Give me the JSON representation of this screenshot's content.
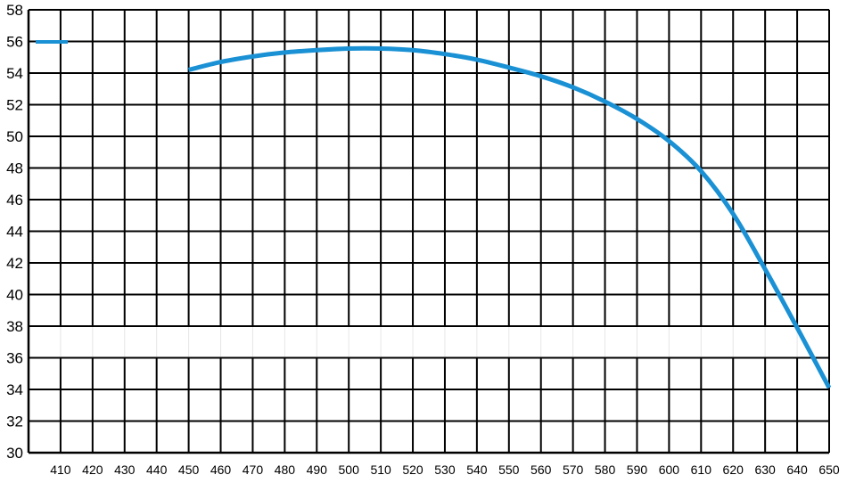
{
  "chart_data": {
    "type": "line",
    "title": "",
    "xlabel": "",
    "ylabel": "",
    "grid": true,
    "legend_placement": "top-left",
    "xlim": [
      400,
      650
    ],
    "ylim": [
      30,
      58
    ],
    "x_ticks": [
      410,
      420,
      430,
      440,
      450,
      460,
      470,
      480,
      490,
      500,
      510,
      520,
      530,
      540,
      550,
      560,
      570,
      580,
      590,
      600,
      610,
      620,
      630,
      640,
      650
    ],
    "y_ticks": [
      30,
      32,
      34,
      36,
      38,
      40,
      42,
      44,
      46,
      48,
      50,
      52,
      54,
      56,
      58
    ],
    "gap_band": {
      "y_from": 36,
      "y_to": 38
    },
    "series": [
      {
        "color": "#1a91d4",
        "x": [
          450,
          460,
          470,
          480,
          490,
          500,
          510,
          520,
          530,
          540,
          550,
          560,
          570,
          580,
          590,
          600,
          610,
          620,
          630,
          640,
          650
        ],
        "y": [
          54.2,
          54.7,
          55.05,
          55.3,
          55.45,
          55.55,
          55.55,
          55.45,
          55.2,
          54.85,
          54.35,
          53.8,
          53.1,
          52.2,
          51.1,
          49.7,
          47.8,
          45.1,
          41.6,
          37.9,
          34.1
        ]
      }
    ]
  }
}
